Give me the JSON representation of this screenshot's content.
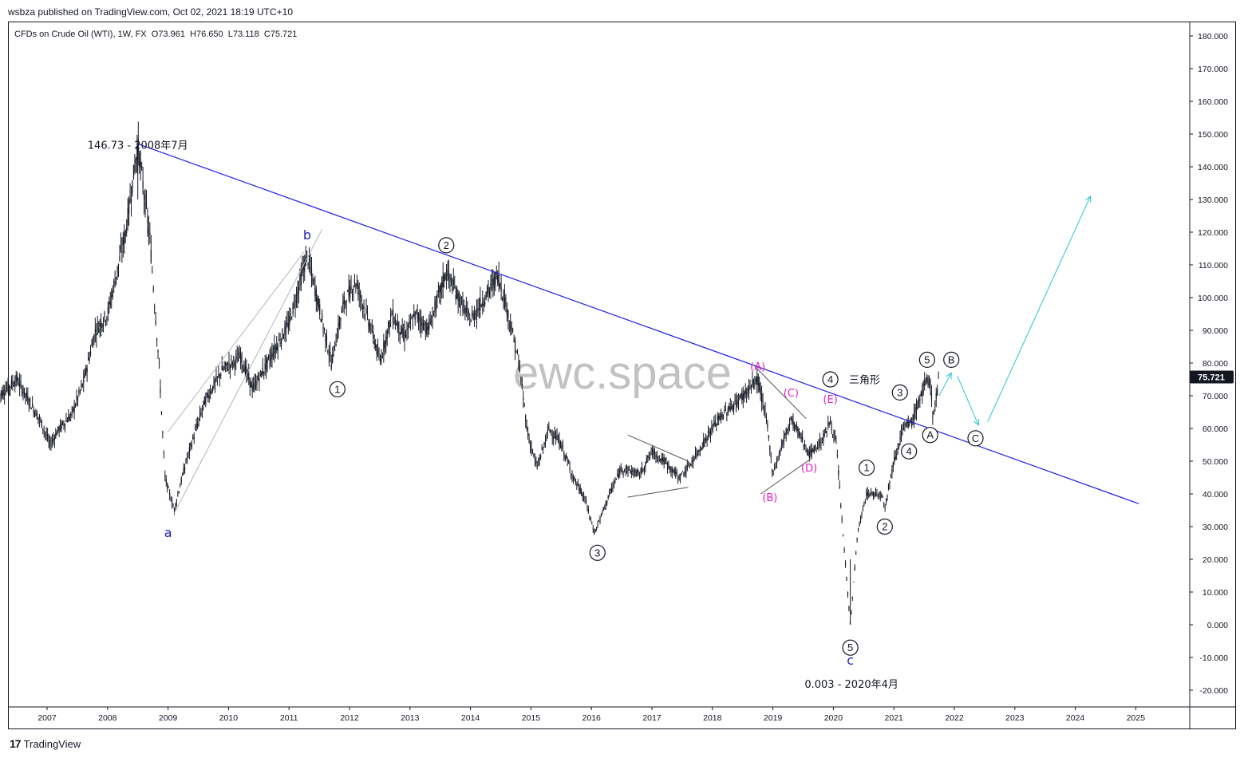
{
  "header": {
    "published": "wsbza published on TradingView.com, Oct 02, 2021 18:19 UTC+10",
    "symbol_line": "CFDs on Crude Oil (WTI), 1W, FX  O73.961  H76.650  L73.118  C75.721"
  },
  "footer": {
    "logo_mark": "17",
    "logo_text": "TradingView"
  },
  "watermark": "ewc.space",
  "chart_data": {
    "type": "candlestick",
    "title": "CFDs on Crude Oil (WTI), 1W, FX",
    "ohlc_last": {
      "open": 73.961,
      "high": 76.65,
      "low": 73.118,
      "close": 75.721
    },
    "last_price_label": "75.721",
    "y_ticks": [
      "180.000",
      "170.000",
      "160.000",
      "150.000",
      "140.000",
      "130.000",
      "120.000",
      "110.000",
      "100.000",
      "90.000",
      "80.000",
      "70.000",
      "60.000",
      "50.000",
      "40.000",
      "30.000",
      "20.000",
      "10.000",
      "0.000",
      "-10.000",
      "-20.000"
    ],
    "x_ticks": [
      "2007",
      "2008",
      "2009",
      "2010",
      "2011",
      "2012",
      "2013",
      "2014",
      "2015",
      "2016",
      "2017",
      "2018",
      "2019",
      "2020",
      "2021",
      "2022",
      "2023",
      "2024",
      "2025"
    ],
    "ylim": [
      -20,
      180
    ],
    "price_path": [
      [
        2006.2,
        70
      ],
      [
        2006.5,
        75
      ],
      [
        2006.9,
        62
      ],
      [
        2007.05,
        55
      ],
      [
        2007.2,
        60
      ],
      [
        2007.4,
        64
      ],
      [
        2007.6,
        74
      ],
      [
        2007.8,
        90
      ],
      [
        2008.0,
        95
      ],
      [
        2008.3,
        120
      ],
      [
        2008.5,
        146.73
      ],
      [
        2008.7,
        118
      ],
      [
        2008.85,
        80
      ],
      [
        2008.95,
        45
      ],
      [
        2009.1,
        35
      ],
      [
        2009.3,
        50
      ],
      [
        2009.6,
        68
      ],
      [
        2009.9,
        78
      ],
      [
        2010.2,
        82
      ],
      [
        2010.4,
        72
      ],
      [
        2010.7,
        82
      ],
      [
        2011.0,
        92
      ],
      [
        2011.3,
        113
      ],
      [
        2011.5,
        97
      ],
      [
        2011.7,
        80
      ],
      [
        2011.9,
        98
      ],
      [
        2012.1,
        105
      ],
      [
        2012.4,
        88
      ],
      [
        2012.5,
        80
      ],
      [
        2012.7,
        95
      ],
      [
        2012.9,
        88
      ],
      [
        2013.1,
        95
      ],
      [
        2013.3,
        90
      ],
      [
        2013.6,
        108
      ],
      [
        2013.8,
        100
      ],
      [
        2014.0,
        93
      ],
      [
        2014.3,
        102
      ],
      [
        2014.45,
        107
      ],
      [
        2014.6,
        97
      ],
      [
        2014.8,
        80
      ],
      [
        2014.95,
        58
      ],
      [
        2015.1,
        48
      ],
      [
        2015.3,
        60
      ],
      [
        2015.5,
        55
      ],
      [
        2015.7,
        45
      ],
      [
        2015.9,
        38
      ],
      [
        2016.05,
        28
      ],
      [
        2016.3,
        40
      ],
      [
        2016.5,
        48
      ],
      [
        2016.8,
        46
      ],
      [
        2017.0,
        53
      ],
      [
        2017.2,
        50
      ],
      [
        2017.45,
        45
      ],
      [
        2017.6,
        48
      ],
      [
        2017.9,
        57
      ],
      [
        2018.1,
        63
      ],
      [
        2018.4,
        68
      ],
      [
        2018.75,
        75
      ],
      [
        2018.9,
        62
      ],
      [
        2019.0,
        46
      ],
      [
        2019.15,
        55
      ],
      [
        2019.3,
        63
      ],
      [
        2019.45,
        58
      ],
      [
        2019.6,
        52
      ],
      [
        2019.8,
        56
      ],
      [
        2019.95,
        62
      ],
      [
        2020.05,
        55
      ],
      [
        2020.15,
        30
      ],
      [
        2020.28,
        0.003
      ],
      [
        2020.4,
        28
      ],
      [
        2020.55,
        40
      ],
      [
        2020.8,
        40
      ],
      [
        2020.85,
        36
      ],
      [
        2021.0,
        50
      ],
      [
        2021.15,
        60
      ],
      [
        2021.3,
        62
      ],
      [
        2021.5,
        73
      ],
      [
        2021.6,
        75
      ],
      [
        2021.65,
        63
      ],
      [
        2021.75,
        75.72
      ]
    ]
  },
  "annotations": [
    {
      "text": "146.73 - 2008年7月",
      "x": 2008.5,
      "y": 146.73,
      "kind": "plain"
    },
    {
      "text": "0.003 - 2020年4月",
      "x": 2020.3,
      "y": -18,
      "kind": "plain"
    },
    {
      "text": "a",
      "x": 2009.0,
      "y": 28,
      "kind": "blue"
    },
    {
      "text": "b",
      "x": 2011.3,
      "y": 119,
      "kind": "blue"
    },
    {
      "text": "c",
      "x": 2020.28,
      "y": -11,
      "kind": "blue"
    },
    {
      "text": "1",
      "x": 2011.8,
      "y": 72,
      "kind": "circle"
    },
    {
      "text": "2",
      "x": 2013.6,
      "y": 116,
      "kind": "circle"
    },
    {
      "text": "3",
      "x": 2016.1,
      "y": 22,
      "kind": "circle"
    },
    {
      "text": "4",
      "x": 2019.95,
      "y": 75,
      "kind": "circle"
    },
    {
      "text": "三角形",
      "x": 2020.1,
      "y": 75,
      "kind": "plain"
    },
    {
      "text": "5",
      "x": 2020.28,
      "y": -7,
      "kind": "circle"
    },
    {
      "text": "1",
      "x": 2020.55,
      "y": 48,
      "kind": "circle"
    },
    {
      "text": "2",
      "x": 2020.85,
      "y": 30,
      "kind": "circle"
    },
    {
      "text": "3",
      "x": 2021.1,
      "y": 71,
      "kind": "circle"
    },
    {
      "text": "4",
      "x": 2021.25,
      "y": 53,
      "kind": "circle"
    },
    {
      "text": "5",
      "x": 2021.55,
      "y": 81,
      "kind": "circle"
    },
    {
      "text": "A",
      "x": 2021.6,
      "y": 58,
      "kind": "circle"
    },
    {
      "text": "B",
      "x": 2021.95,
      "y": 81,
      "kind": "circle"
    },
    {
      "text": "C",
      "x": 2022.35,
      "y": 57,
      "kind": "circle"
    },
    {
      "text": "(A)",
      "x": 2018.75,
      "y": 79,
      "kind": "magenta"
    },
    {
      "text": "(B)",
      "x": 2018.95,
      "y": 39,
      "kind": "magenta"
    },
    {
      "text": "(C)",
      "x": 2019.3,
      "y": 71,
      "kind": "magenta"
    },
    {
      "text": "(D)",
      "x": 2019.6,
      "y": 48,
      "kind": "magenta"
    },
    {
      "text": "(E)",
      "x": 2019.95,
      "y": 69,
      "kind": "magenta"
    }
  ],
  "lines": [
    {
      "from": [
        2008.5,
        147
      ],
      "to": [
        2025.05,
        37
      ],
      "kind": "trend"
    },
    {
      "from": [
        2009.1,
        34
      ],
      "to": [
        2011.55,
        121
      ],
      "kind": "channel"
    },
    {
      "from": [
        2009.0,
        59
      ],
      "to": [
        2011.25,
        114
      ],
      "kind": "channel"
    },
    {
      "from": [
        2016.6,
        58
      ],
      "to": [
        2017.6,
        50
      ],
      "kind": "triangle"
    },
    {
      "from": [
        2016.6,
        39
      ],
      "to": [
        2017.6,
        42
      ],
      "kind": "triangle"
    },
    {
      "from": [
        2018.7,
        79
      ],
      "to": [
        2019.55,
        63
      ],
      "kind": "triangle"
    },
    {
      "from": [
        2018.8,
        40
      ],
      "to": [
        2019.65,
        51
      ],
      "kind": "triangle"
    },
    {
      "from": [
        2021.75,
        70
      ],
      "to": [
        2021.95,
        77
      ],
      "kind": "projection"
    },
    {
      "from": [
        2022.05,
        76
      ],
      "to": [
        2022.4,
        61
      ],
      "kind": "projection"
    },
    {
      "from": [
        2022.55,
        62
      ],
      "to": [
        2024.25,
        131
      ],
      "kind": "projection"
    }
  ],
  "colors": {
    "trendline": "#1e1ee6",
    "channel": "#b2b5be",
    "projection": "#29c4d8",
    "candle": "#131722",
    "wave_label_blue": "#1e1eb4",
    "wave_label_magenta": "#e020c8",
    "price_badge": "#131722"
  }
}
